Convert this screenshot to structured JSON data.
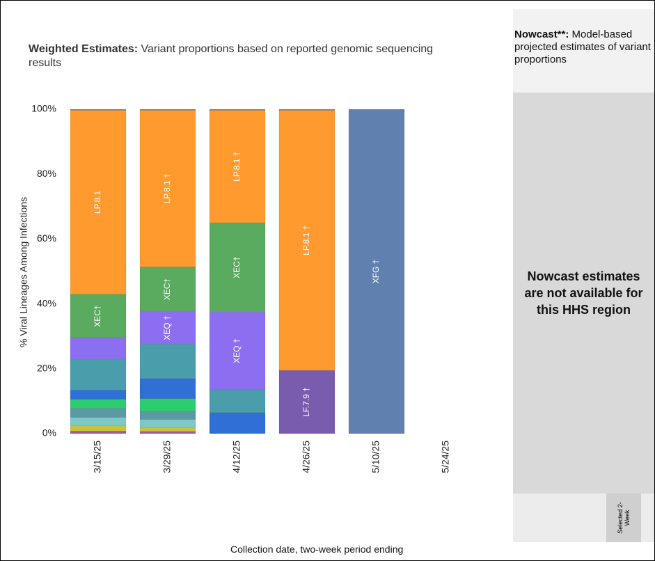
{
  "chart_data": {
    "type": "stacked_bar",
    "title": "Weighted Estimates:",
    "subtitle": "Variant proportions based on reported genomic sequencing results",
    "y_label": "% Viral Lineages Among Infections",
    "x_label": "Collection date, two-week period ending",
    "categories": [
      "3/15/25",
      "3/29/25",
      "4/12/25",
      "4/26/25",
      "5/10/25",
      "5/24/25"
    ],
    "ylim": [
      0,
      100
    ],
    "yticks": [
      {
        "value": 0,
        "label": "0%"
      },
      {
        "value": 20,
        "label": "20%"
      },
      {
        "value": 40,
        "label": "40%"
      },
      {
        "value": 60,
        "label": "60%"
      },
      {
        "value": 80,
        "label": "80%"
      },
      {
        "value": 100,
        "label": "100%"
      }
    ],
    "grid": false,
    "series": [
      {
        "color": "#a05a9c",
        "values": [
          0.8,
          0.7,
          0,
          0,
          0,
          null
        ]
      },
      {
        "color": "#c5c43a",
        "values": [
          1.7,
          1.2,
          0,
          0,
          0,
          null
        ]
      },
      {
        "color": "#7ec8c8",
        "values": [
          2.5,
          2.5,
          0,
          0,
          0,
          null
        ]
      },
      {
        "color": "#5b9aa5",
        "values": [
          2.8,
          2.5,
          0,
          0,
          0,
          null
        ]
      },
      {
        "color": "#2ecc71",
        "values": [
          2.8,
          3.9,
          0,
          0,
          0,
          null
        ]
      },
      {
        "color": "#2f6fd6",
        "values": [
          2.8,
          6.2,
          6.5,
          0,
          0,
          null
        ]
      },
      {
        "color": "#4a9daa",
        "values": [
          9.6,
          10.6,
          7,
          0,
          0,
          null
        ]
      },
      {
        "color": "#8c6ff0",
        "values": [
          6.5,
          10,
          24,
          0,
          0,
          null
        ],
        "labels": [
          null,
          "XEQ †",
          "XEQ †",
          null,
          null,
          null
        ]
      },
      {
        "color": "#7a5cae",
        "values": [
          0,
          0,
          0,
          19.5,
          0,
          null
        ],
        "labels": [
          null,
          null,
          null,
          "LF.7.9 †",
          null,
          null
        ]
      },
      {
        "color": "#5aaa5f",
        "values": [
          13.5,
          13.8,
          27.5,
          0,
          0,
          null
        ],
        "labels": [
          "XEC†",
          "XEC†",
          "XEC†",
          null,
          null,
          null
        ]
      },
      {
        "color": "#ff9a2e",
        "values": [
          56.7,
          48.3,
          34.7,
          80.2,
          0,
          null
        ],
        "labels": [
          "LP.8.1",
          "LP.8.1 †",
          "LP.8.1 †",
          "LP.8.1 †",
          null,
          null
        ]
      },
      {
        "color": "#6080b0",
        "values": [
          0.3,
          0.3,
          0.3,
          0.3,
          100,
          null
        ],
        "labels": [
          null,
          null,
          null,
          null,
          "XFG †",
          null
        ]
      }
    ]
  },
  "nowcast_panel": {
    "heading": "Nowcast**:",
    "description": "Model-based projected estimates of variant proportions",
    "message": "Nowcast estimates are not available for this HHS region",
    "button": "Selected 2-Week"
  }
}
